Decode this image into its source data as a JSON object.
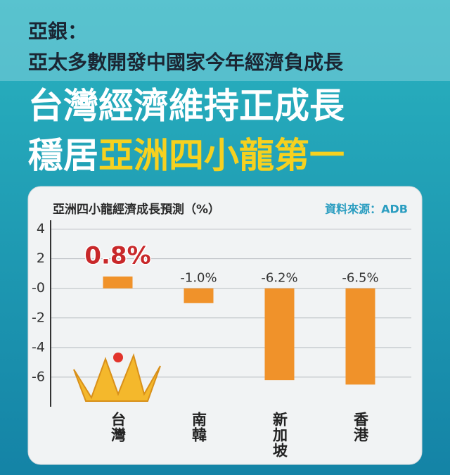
{
  "header": {
    "line1": "亞銀：",
    "line2": "亞太多數開發中國家今年經濟負成長",
    "headline1": "台灣經濟維持正成長",
    "headline2_white": "穩居",
    "headline2_yellow": "亞洲四小龍第一"
  },
  "chart_data": {
    "type": "bar",
    "title": "亞洲四小龍經濟成長預測（%）",
    "source": "資料來源：ADB",
    "categories": [
      "台灣",
      "南韓",
      "新加坡",
      "香港"
    ],
    "values": [
      0.8,
      -1.0,
      -6.2,
      -6.5
    ],
    "value_labels": [
      "0.8%",
      "-1.0%",
      "-6.2%",
      "-6.5%"
    ],
    "color": "#f0922a",
    "highlight_label_color": "#c8282a",
    "ylim": [
      -8,
      4.6
    ],
    "yticks": [
      4,
      2,
      {
        "value": 0,
        "label": "-0"
      },
      -2,
      -4,
      -6
    ],
    "grid": true
  }
}
